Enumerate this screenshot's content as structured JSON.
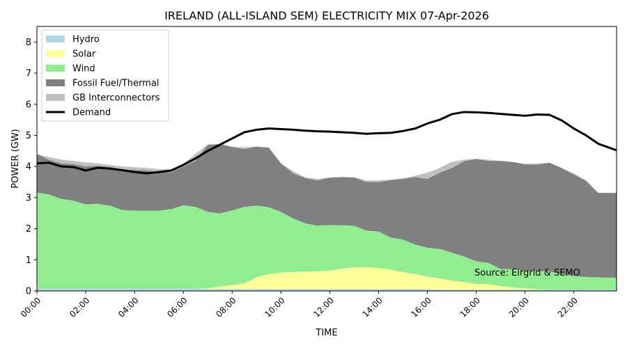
{
  "chart_data": {
    "type": "area",
    "title": "IRELAND (ALL-ISLAND SEM) ELECTRICITY MIX 07-Apr-2026",
    "xlabel": "TIME",
    "ylabel": "POWER (GW)",
    "xlim": [
      0,
      23.75
    ],
    "ylim": [
      0,
      8.5
    ],
    "yticks": [
      0,
      1,
      2,
      3,
      4,
      5,
      6,
      7,
      8
    ],
    "xticks": [
      {
        "value": 0,
        "label": "00:00"
      },
      {
        "value": 2,
        "label": "02:00"
      },
      {
        "value": 4,
        "label": "04:00"
      },
      {
        "value": 6,
        "label": "06:00"
      },
      {
        "value": 8,
        "label": "08:00"
      },
      {
        "value": 10,
        "label": "10:00"
      },
      {
        "value": 12,
        "label": "12:00"
      },
      {
        "value": 14,
        "label": "14:00"
      },
      {
        "value": 16,
        "label": "16:00"
      },
      {
        "value": 18,
        "label": "18:00"
      },
      {
        "value": 20,
        "label": "20:00"
      },
      {
        "value": 22,
        "label": "22:00"
      }
    ],
    "annotation": "Source: Eirgrid & SEMO",
    "legend_position": "top-left",
    "colors": {
      "hydro": "#add8e6",
      "solar": "#ffff99",
      "wind": "#90ee90",
      "fossil": "#808080",
      "gb": "#c0c0c0",
      "demand": "#000000"
    },
    "x_hours": [
      0,
      0.5,
      1,
      1.5,
      2,
      2.5,
      3,
      3.5,
      4,
      4.5,
      5,
      5.5,
      6,
      6.5,
      7,
      7.5,
      8,
      8.5,
      9,
      9.5,
      10,
      10.5,
      11,
      11.5,
      12,
      12.5,
      13,
      13.5,
      14,
      14.5,
      15,
      15.5,
      16,
      16.5,
      17,
      17.5,
      18,
      18.5,
      19,
      19.5,
      20,
      20.5,
      21,
      21.5,
      22,
      22.5,
      23,
      23.75
    ],
    "stacked_series": [
      {
        "key": "hydro",
        "name": "Hydro",
        "values": [
          0.08,
          0.08,
          0.08,
          0.08,
          0.08,
          0.08,
          0.08,
          0.08,
          0.08,
          0.08,
          0.08,
          0.08,
          0.08,
          0.08,
          0.06,
          0.06,
          0.06,
          0.06,
          0.06,
          0.06,
          0.06,
          0.06,
          0.06,
          0.06,
          0.06,
          0.06,
          0.06,
          0.06,
          0.06,
          0.06,
          0.06,
          0.06,
          0.06,
          0.04,
          0.04,
          0.04,
          0.04,
          0.04,
          0.04,
          0.04,
          0.04,
          0.04,
          0.04,
          0.04,
          0.04,
          0.04,
          0.04,
          0.04
        ]
      },
      {
        "key": "solar",
        "name": "Solar",
        "values": [
          0,
          0,
          0,
          0,
          0,
          0,
          0,
          0,
          0,
          0,
          0,
          0,
          0,
          0,
          0.02,
          0.08,
          0.13,
          0.18,
          0.38,
          0.48,
          0.53,
          0.55,
          0.56,
          0.57,
          0.6,
          0.65,
          0.7,
          0.7,
          0.68,
          0.62,
          0.55,
          0.48,
          0.4,
          0.36,
          0.29,
          0.25,
          0.19,
          0.17,
          0.12,
          0.07,
          0.04,
          0.02,
          0,
          0,
          0,
          0,
          0,
          0
        ]
      },
      {
        "key": "wind",
        "name": "Wind",
        "values": [
          3.08,
          3.02,
          2.88,
          2.82,
          2.7,
          2.72,
          2.66,
          2.52,
          2.5,
          2.5,
          2.5,
          2.55,
          2.67,
          2.62,
          2.46,
          2.35,
          2.4,
          2.46,
          2.3,
          2.15,
          1.95,
          1.72,
          1.55,
          1.47,
          1.46,
          1.4,
          1.33,
          1.18,
          1.17,
          1.03,
          1.04,
          0.95,
          0.93,
          0.95,
          0.9,
          0.82,
          0.72,
          0.69,
          0.54,
          0.59,
          0.57,
          0.58,
          0.58,
          0.5,
          0.44,
          0.41,
          0.4,
          0.38
        ]
      },
      {
        "key": "fossil",
        "name": "Fossil Fuel/Thermal",
        "values": [
          1.24,
          1.11,
          1.14,
          1.17,
          1.22,
          1.22,
          1.25,
          1.3,
          1.31,
          1.29,
          1.24,
          1.18,
          1.25,
          1.48,
          2.16,
          2.23,
          2.04,
          1.86,
          1.9,
          1.91,
          1.56,
          1.45,
          1.46,
          1.45,
          1.52,
          1.55,
          1.56,
          1.56,
          1.59,
          1.85,
          1.95,
          2.17,
          2.21,
          2.45,
          2.72,
          3.06,
          3.29,
          3.28,
          3.48,
          3.44,
          3.42,
          3.42,
          3.5,
          3.41,
          3.26,
          3.09,
          2.71,
          2.73
        ]
      },
      {
        "key": "gb",
        "name": "GB Interconnectors",
        "values": [
          0,
          0,
          0,
          0,
          0,
          0,
          0,
          0,
          0,
          0,
          0,
          0,
          0,
          0,
          0,
          0,
          0,
          0,
          0,
          0,
          0,
          0,
          0,
          0,
          0,
          0,
          0,
          0,
          0,
          0,
          0,
          0,
          0,
          0,
          0,
          0,
          0,
          0,
          0,
          0,
          0,
          0,
          0,
          0,
          0,
          0,
          0,
          0
        ]
      }
    ],
    "gb_top": [
      4.38,
      4.3,
      4.22,
      4.18,
      4.13,
      4.1,
      4.05,
      4.0,
      3.98,
      3.95,
      3.92,
      3.9,
      4.1,
      4.4,
      4.7,
      4.72,
      4.63,
      4.62,
      4.63,
      4.62,
      4.1,
      3.85,
      3.65,
      3.6,
      3.65,
      3.66,
      3.62,
      3.55,
      3.55,
      3.58,
      3.62,
      3.7,
      3.8,
      3.95,
      4.15,
      4.22,
      4.25,
      4.22,
      4.18,
      4.15,
      4.08,
      4.1,
      4.12,
      3.95,
      3.78,
      3.55,
      3.15,
      3.15
    ],
    "demand": {
      "name": "Demand",
      "values": [
        4.1,
        4.12,
        4.0,
        3.98,
        3.87,
        3.96,
        3.93,
        3.88,
        3.82,
        3.78,
        3.82,
        3.87,
        4.05,
        4.26,
        4.5,
        4.7,
        4.9,
        5.1,
        5.18,
        5.22,
        5.2,
        5.18,
        5.15,
        5.13,
        5.12,
        5.1,
        5.08,
        5.05,
        5.07,
        5.08,
        5.14,
        5.22,
        5.38,
        5.5,
        5.68,
        5.75,
        5.74,
        5.72,
        5.69,
        5.66,
        5.63,
        5.67,
        5.66,
        5.48,
        5.22,
        5.0,
        4.73,
        4.52
      ]
    }
  }
}
